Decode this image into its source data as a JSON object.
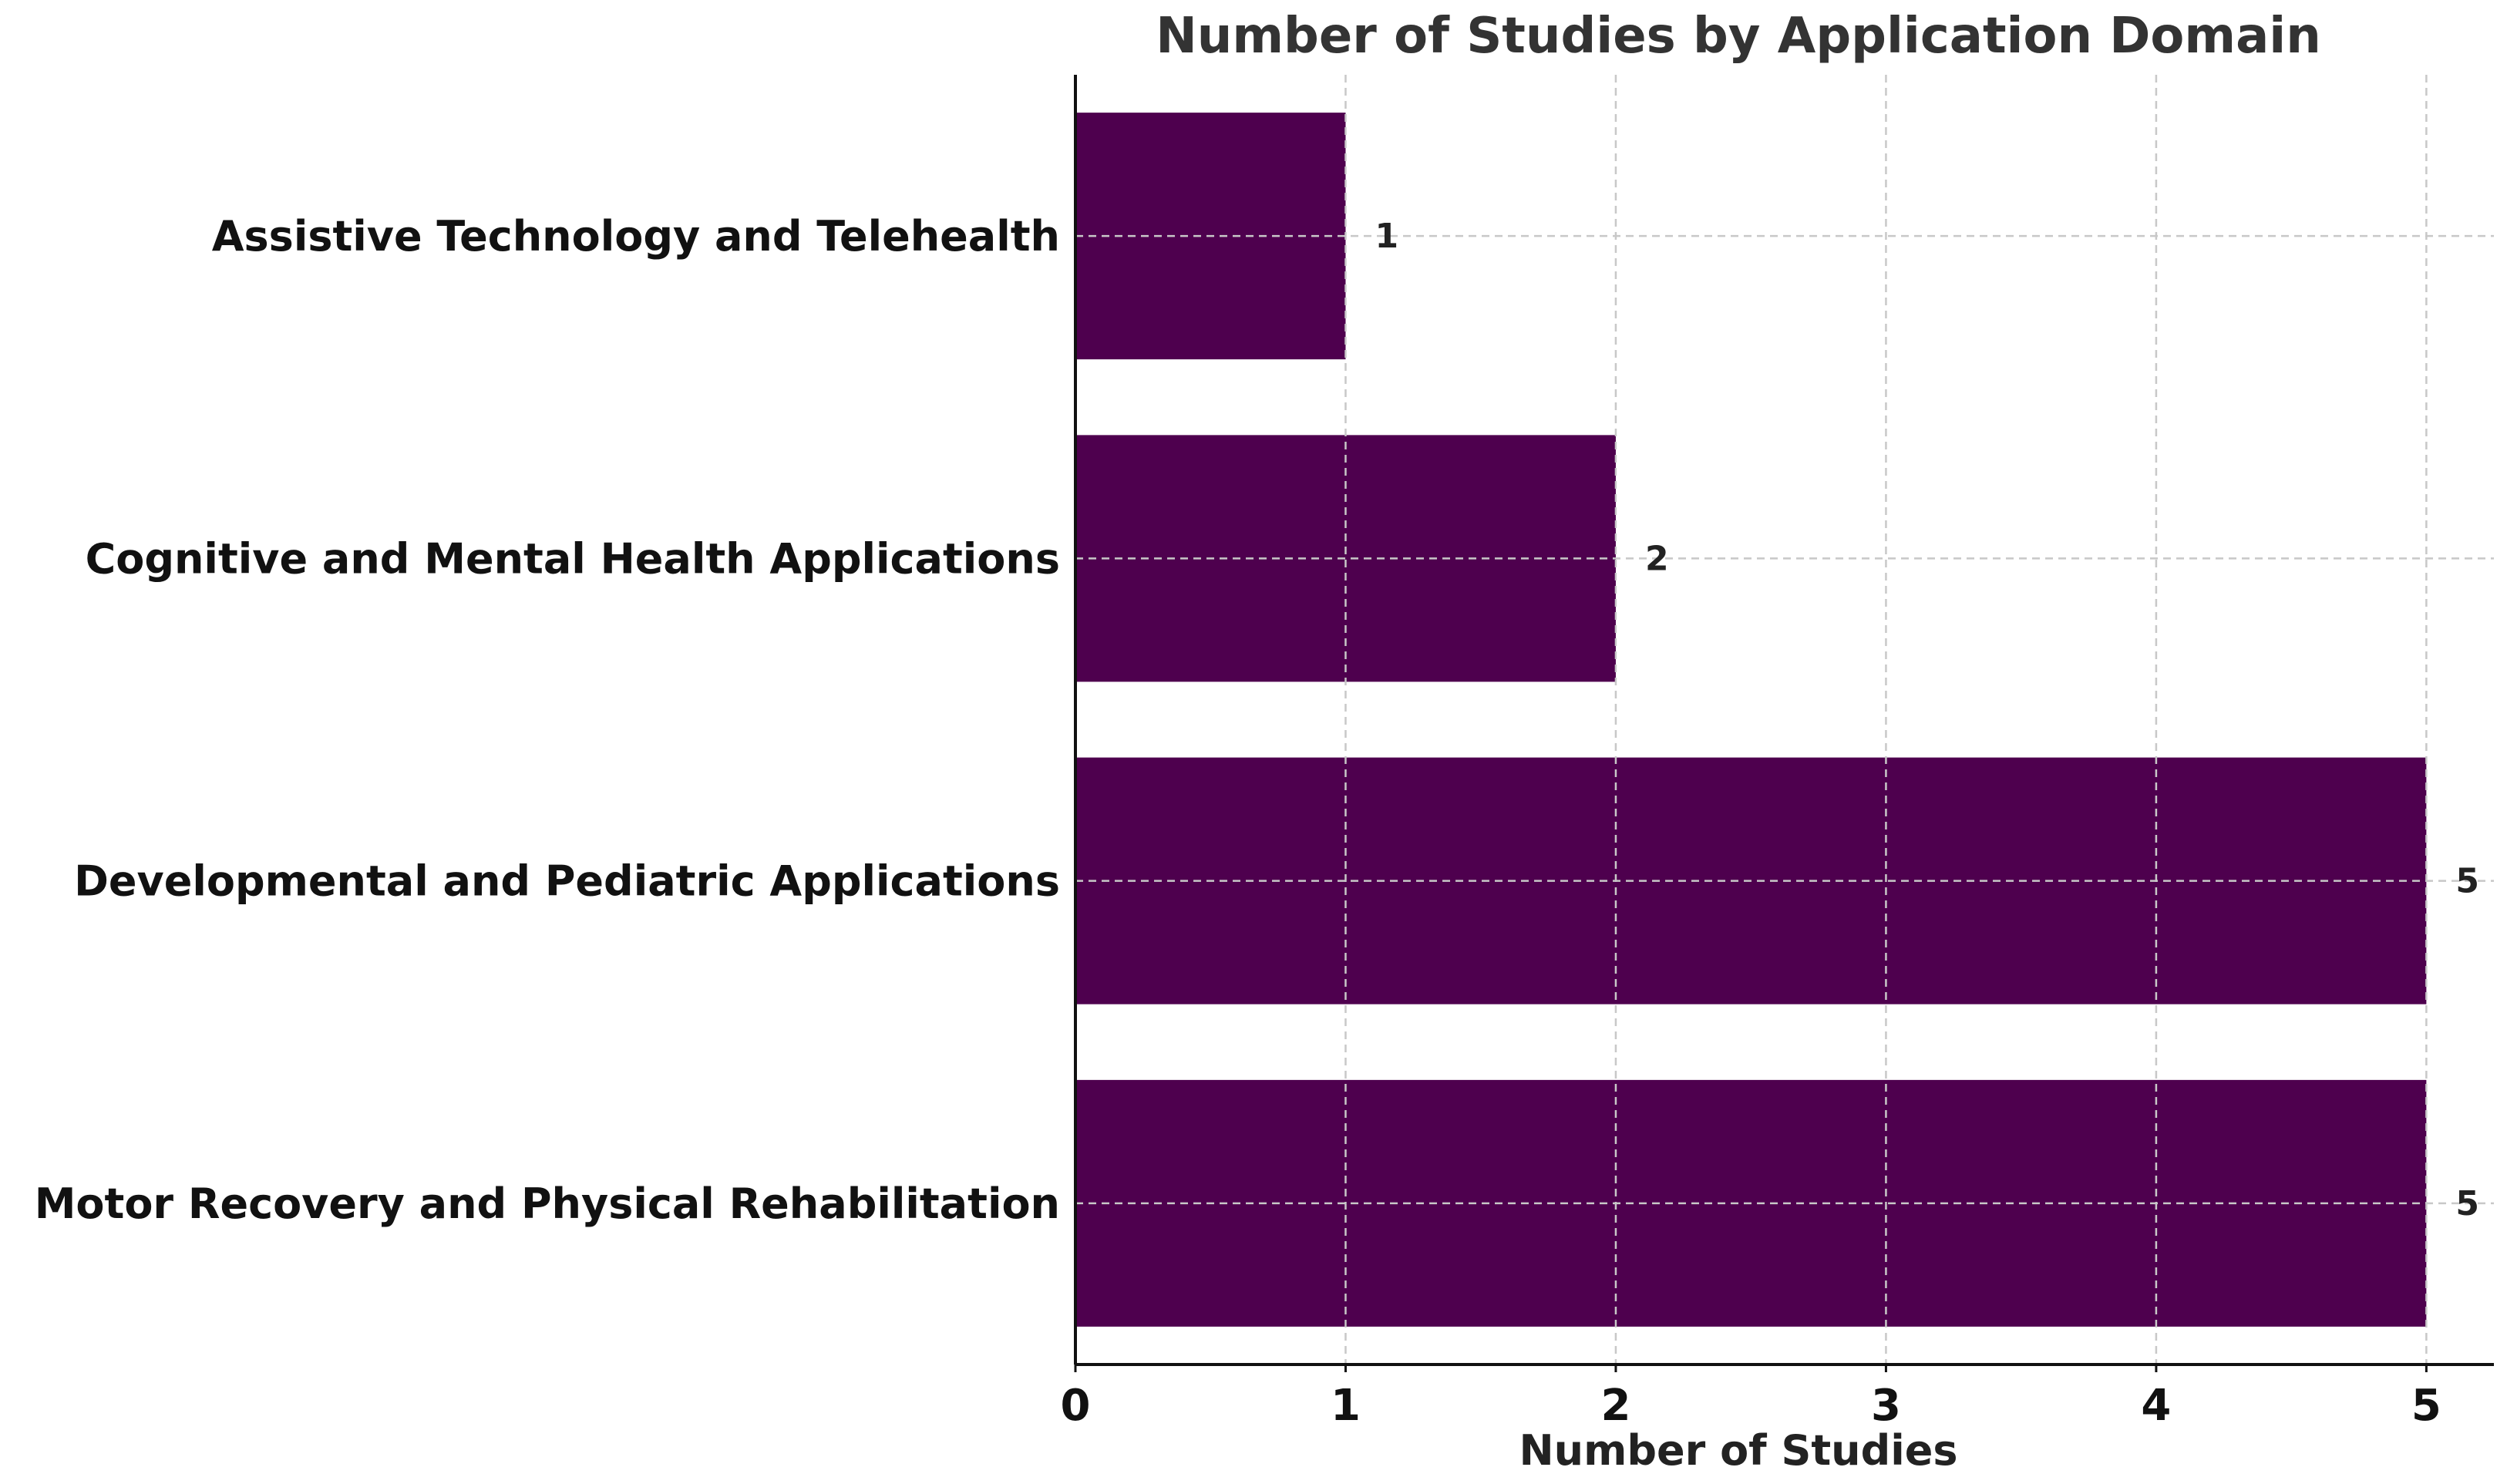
{
  "chart_data": {
    "type": "bar",
    "orientation": "horizontal",
    "title": "Number of Studies by Application Domain",
    "xlabel": "Number of Studies",
    "ylabel": "",
    "categories": [
      "Motor Recovery and Physical Rehabilitation",
      "Developmental and Pediatric Applications",
      "Cognitive and Mental Health Applications",
      "Assistive Technology and Telehealth"
    ],
    "values": [
      5,
      5,
      2,
      1
    ],
    "value_labels": [
      "5",
      "5",
      "2",
      "1"
    ],
    "xlim": [
      0,
      5.25
    ],
    "xticks": [
      0,
      1,
      2,
      3,
      4,
      5
    ],
    "xtick_labels": [
      "0",
      "1",
      "2",
      "3",
      "4",
      "5"
    ],
    "grid": true,
    "bar_color": "#4e004e"
  }
}
